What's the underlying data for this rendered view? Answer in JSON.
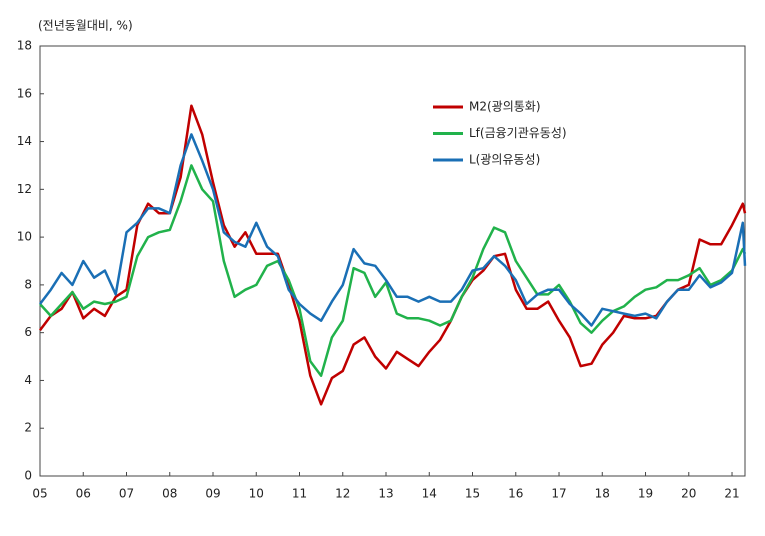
{
  "chart_data": {
    "type": "line",
    "ylabel": "(전년동월대비, %)",
    "x": [
      5,
      5.25,
      5.5,
      5.75,
      6,
      6.25,
      6.5,
      6.75,
      7,
      7.25,
      7.5,
      7.75,
      8,
      8.25,
      8.5,
      8.75,
      9,
      9.25,
      9.5,
      9.75,
      10,
      10.25,
      10.5,
      10.75,
      11,
      11.25,
      11.5,
      11.75,
      12,
      12.25,
      12.5,
      12.75,
      13,
      13.25,
      13.5,
      13.75,
      14,
      14.25,
      14.5,
      14.75,
      15,
      15.25,
      15.5,
      15.75,
      16,
      16.25,
      16.5,
      16.75,
      17,
      17.25,
      17.5,
      17.75,
      18,
      18.25,
      18.5,
      18.75,
      19,
      19.25,
      19.5,
      19.75,
      20,
      20.25,
      20.5,
      20.75,
      21,
      21.25,
      21.3
    ],
    "series": [
      {
        "name": "M2(광의통화)",
        "color": "#c00000",
        "values": [
          6.1,
          6.7,
          7.0,
          7.7,
          6.6,
          7.0,
          6.7,
          7.5,
          7.8,
          10.5,
          11.4,
          11.0,
          11.0,
          12.5,
          15.5,
          14.3,
          12.3,
          10.5,
          9.6,
          10.2,
          9.3,
          9.3,
          9.3,
          8.0,
          6.5,
          4.2,
          3.0,
          4.1,
          4.4,
          5.5,
          5.8,
          5.0,
          4.5,
          5.2,
          4.9,
          4.6,
          5.2,
          5.7,
          6.5,
          7.5,
          8.2,
          8.6,
          9.2,
          9.3,
          7.8,
          7.0,
          7.0,
          7.3,
          6.5,
          5.8,
          4.6,
          4.7,
          5.5,
          6.0,
          6.7,
          6.6,
          6.6,
          6.7,
          7.3,
          7.8,
          8.0,
          9.9,
          9.7,
          9.7,
          10.5,
          11.4,
          11.0
        ]
      },
      {
        "name": "Lf(금융기관유동성)",
        "color": "#21b24b",
        "values": [
          7.2,
          6.7,
          7.2,
          7.7,
          7.0,
          7.3,
          7.2,
          7.3,
          7.5,
          9.2,
          10.0,
          10.2,
          10.3,
          11.5,
          13.0,
          12.0,
          11.5,
          9.0,
          7.5,
          7.8,
          8.0,
          8.8,
          9.0,
          8.2,
          7.0,
          4.8,
          4.2,
          5.8,
          6.5,
          8.7,
          8.5,
          7.5,
          8.1,
          6.8,
          6.6,
          6.6,
          6.5,
          6.3,
          6.5,
          7.5,
          8.3,
          9.5,
          10.4,
          10.2,
          9.0,
          8.3,
          7.6,
          7.6,
          8.0,
          7.3,
          6.4,
          6.0,
          6.5,
          6.9,
          7.1,
          7.5,
          7.8,
          7.9,
          8.2,
          8.2,
          8.4,
          8.7,
          8.0,
          8.2,
          8.6,
          9.5,
          9.3
        ]
      },
      {
        "name": "L(광의유동성)",
        "color": "#1a6fb5",
        "values": [
          7.2,
          7.8,
          8.5,
          8.0,
          9.0,
          8.3,
          8.6,
          7.6,
          10.2,
          10.6,
          11.2,
          11.2,
          11.0,
          13.0,
          14.3,
          13.2,
          12.0,
          10.2,
          9.8,
          9.6,
          10.6,
          9.6,
          9.2,
          7.8,
          7.2,
          6.8,
          6.5,
          7.3,
          8.0,
          9.5,
          8.9,
          8.8,
          8.2,
          7.5,
          7.5,
          7.3,
          7.5,
          7.3,
          7.3,
          7.8,
          8.6,
          8.7,
          9.2,
          8.8,
          8.2,
          7.2,
          7.6,
          7.8,
          7.8,
          7.2,
          6.8,
          6.3,
          7.0,
          6.9,
          6.8,
          6.7,
          6.8,
          6.6,
          7.3,
          7.8,
          7.8,
          8.4,
          7.9,
          8.1,
          8.5,
          10.6,
          8.8
        ]
      }
    ],
    "xlim": [
      5,
      21.3
    ],
    "xticks": [
      {
        "value": 5,
        "label": "05"
      },
      {
        "value": 6,
        "label": "06"
      },
      {
        "value": 7,
        "label": "07"
      },
      {
        "value": 8,
        "label": "08"
      },
      {
        "value": 9,
        "label": "09"
      },
      10,
      11,
      12,
      13,
      14,
      15,
      16,
      17,
      18,
      19,
      20,
      21
    ],
    "ylim": [
      0,
      18
    ],
    "yticks": [
      0,
      2,
      4,
      6,
      8,
      10,
      12,
      14,
      16,
      18
    ],
    "legend": "upper-right"
  }
}
